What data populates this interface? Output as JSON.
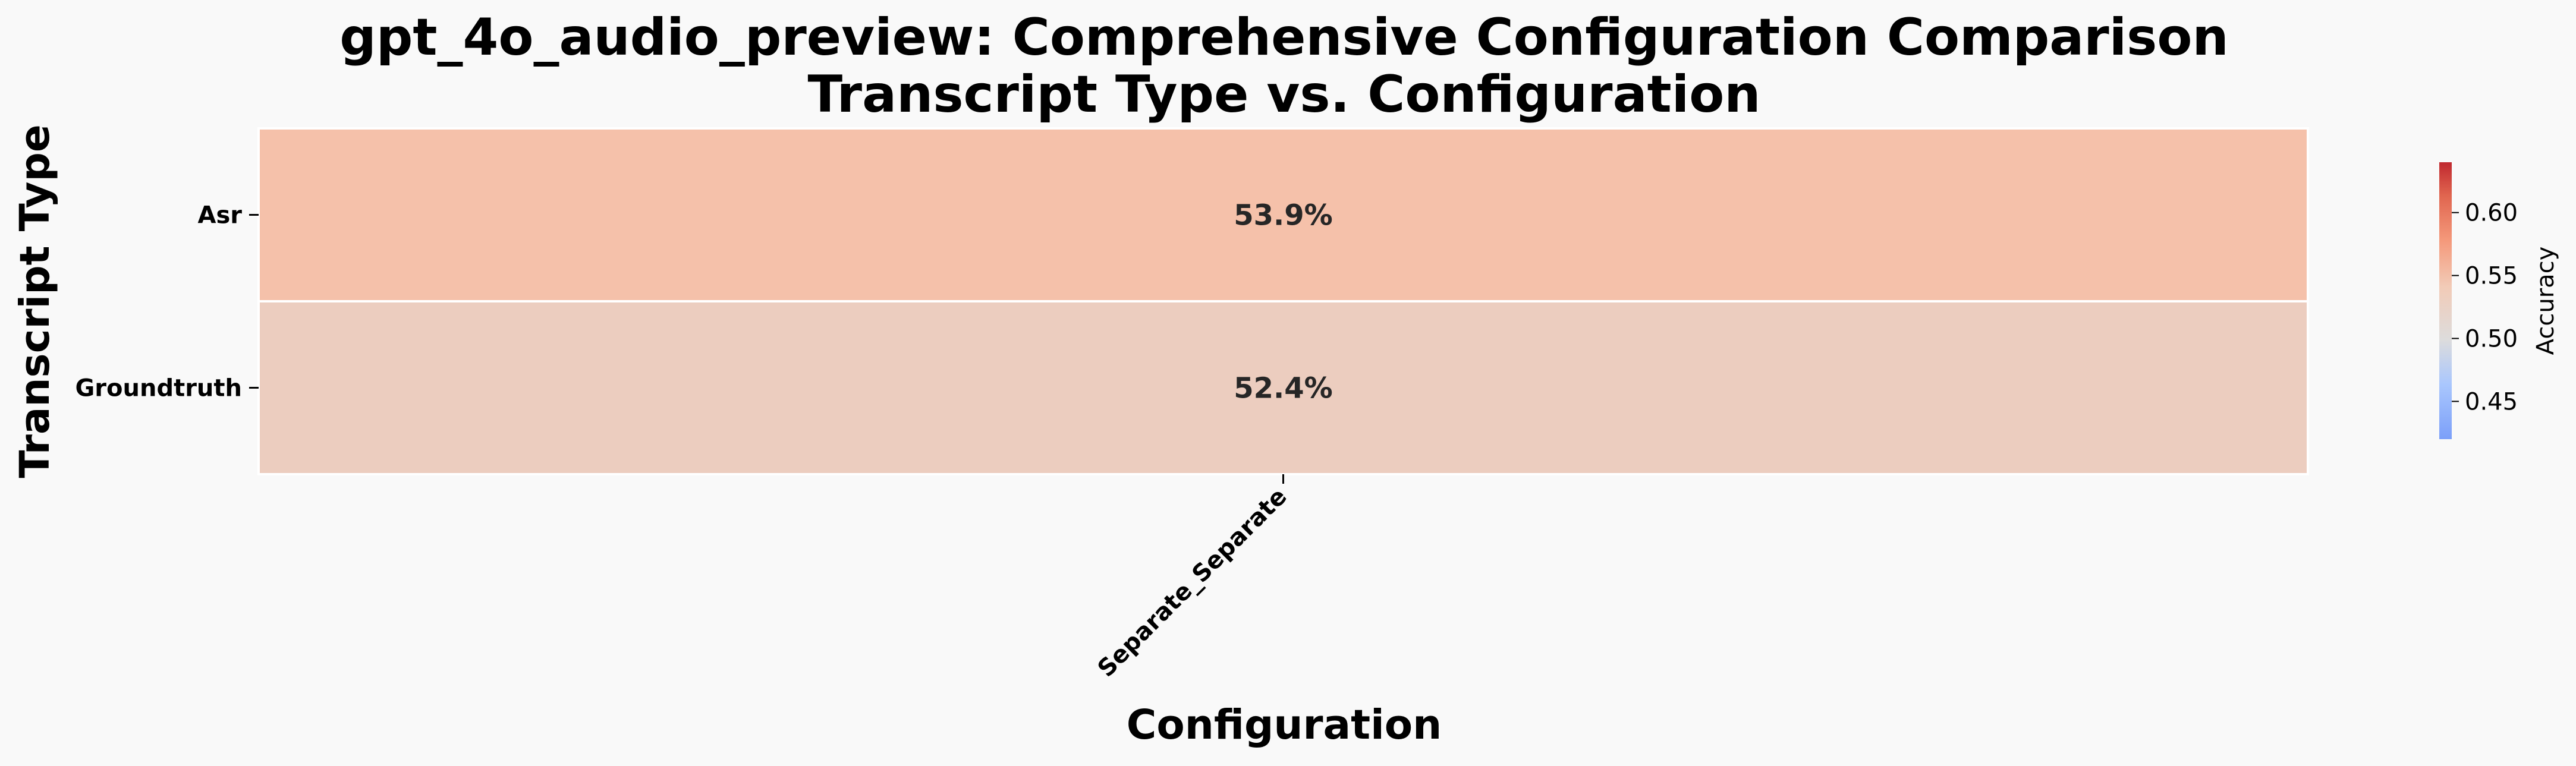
{
  "chart_data": {
    "type": "heatmap",
    "title": "gpt_4o_audio_preview: Comprehensive Configuration Comparison",
    "subtitle": "Transcript Type vs. Configuration",
    "xlabel": "Configuration",
    "ylabel": "Transcript Type",
    "x_categories": [
      "Separate_Separate"
    ],
    "y_categories": [
      "Asr",
      "Groundtruth"
    ],
    "values": [
      [
        0.539
      ],
      [
        0.524
      ]
    ],
    "cell_labels": [
      [
        "53.9%"
      ],
      [
        "52.4%"
      ]
    ],
    "colormap": "coolwarm",
    "color_range": [
      0.42,
      0.64
    ],
    "colorbar": {
      "label": "Accuracy",
      "ticks": [
        0.45,
        0.5,
        0.55,
        0.6
      ],
      "tick_labels": [
        "0.45",
        "0.50",
        "0.55",
        "0.60"
      ]
    }
  }
}
